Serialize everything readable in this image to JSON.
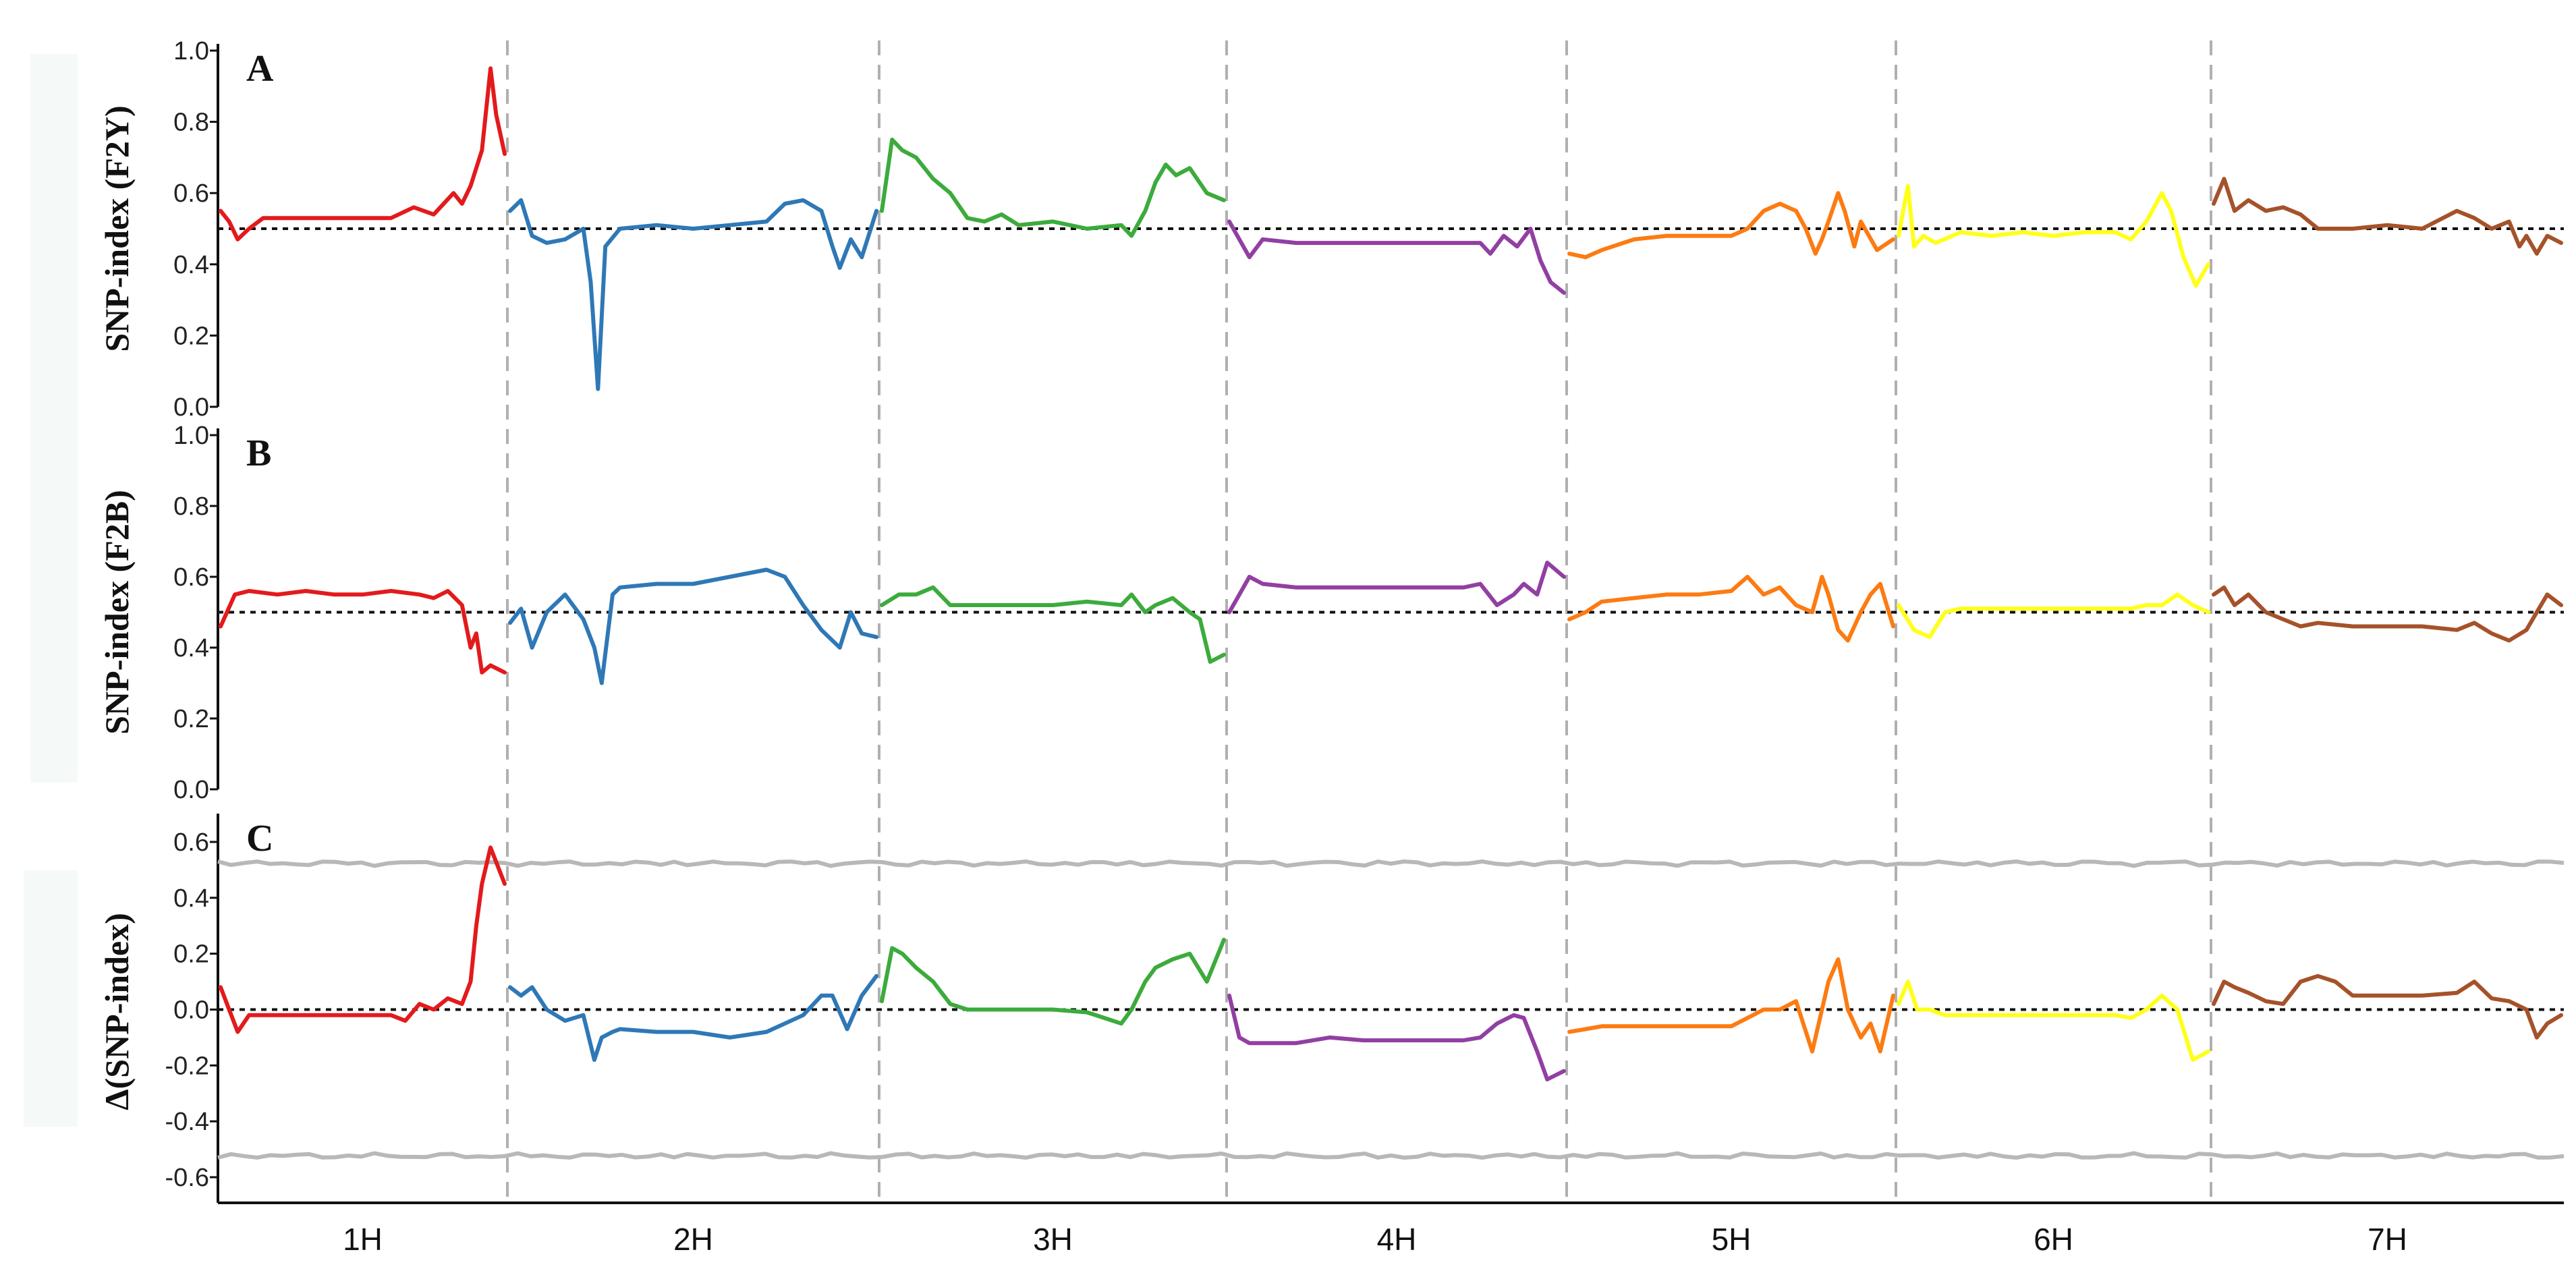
{
  "chart_data": {
    "type": "line",
    "x_categories": [
      "1H",
      "2H",
      "3H",
      "4H",
      "5H",
      "6H",
      "7H"
    ],
    "colors": {
      "1H": "#e31a1c",
      "2H": "#2f78b6",
      "3H": "#3cab3c",
      "4H": "#923fa3",
      "5H": "#fc7b12",
      "6H": "#ffff1a",
      "7H": "#a5522a",
      "threshold": "#b8b8b8"
    },
    "panels": [
      {
        "id": "A",
        "letter": "A",
        "ylabel": "SNP-index (F2Y)",
        "ylim": [
          0,
          1
        ],
        "yticks": [
          "0.0",
          "0.2",
          "0.4",
          "0.6",
          "0.8",
          "1.0"
        ],
        "reference_line": 0.5,
        "series": [
          {
            "chrom": "1H",
            "x": [
              0,
              0.03,
              0.06,
              0.1,
              0.15,
              0.3,
              0.5,
              0.6,
              0.68,
              0.75,
              0.82,
              0.85,
              0.88,
              0.92,
              0.95,
              0.97,
              1.0
            ],
            "y": [
              0.55,
              0.52,
              0.47,
              0.5,
              0.53,
              0.53,
              0.53,
              0.53,
              0.56,
              0.54,
              0.6,
              0.57,
              0.62,
              0.72,
              0.95,
              0.82,
              0.71
            ]
          },
          {
            "chrom": "2H",
            "x": [
              0,
              0.03,
              0.06,
              0.1,
              0.15,
              0.2,
              0.22,
              0.24,
              0.26,
              0.3,
              0.4,
              0.5,
              0.6,
              0.7,
              0.75,
              0.8,
              0.85,
              0.88,
              0.9,
              0.93,
              0.96,
              1.0
            ],
            "y": [
              0.55,
              0.58,
              0.48,
              0.46,
              0.47,
              0.5,
              0.35,
              0.05,
              0.45,
              0.5,
              0.51,
              0.5,
              0.51,
              0.52,
              0.57,
              0.58,
              0.55,
              0.45,
              0.39,
              0.47,
              0.42,
              0.55
            ]
          },
          {
            "chrom": "3H",
            "x": [
              0,
              0.03,
              0.06,
              0.1,
              0.15,
              0.2,
              0.25,
              0.3,
              0.35,
              0.4,
              0.5,
              0.6,
              0.7,
              0.73,
              0.77,
              0.8,
              0.83,
              0.86,
              0.9,
              0.95,
              1.0
            ],
            "y": [
              0.55,
              0.75,
              0.72,
              0.7,
              0.64,
              0.6,
              0.53,
              0.52,
              0.54,
              0.51,
              0.52,
              0.5,
              0.51,
              0.48,
              0.55,
              0.63,
              0.68,
              0.65,
              0.67,
              0.6,
              0.58
            ]
          },
          {
            "chrom": "4H",
            "x": [
              0,
              0.03,
              0.06,
              0.1,
              0.2,
              0.3,
              0.4,
              0.5,
              0.6,
              0.7,
              0.75,
              0.78,
              0.82,
              0.86,
              0.9,
              0.93,
              0.96,
              1.0
            ],
            "y": [
              0.52,
              0.47,
              0.42,
              0.47,
              0.46,
              0.46,
              0.46,
              0.46,
              0.46,
              0.46,
              0.46,
              0.43,
              0.48,
              0.45,
              0.5,
              0.41,
              0.35,
              0.32
            ]
          },
          {
            "chrom": "5H",
            "x": [
              0,
              0.05,
              0.1,
              0.2,
              0.3,
              0.4,
              0.5,
              0.55,
              0.6,
              0.65,
              0.7,
              0.73,
              0.76,
              0.78,
              0.8,
              0.83,
              0.85,
              0.88,
              0.9,
              0.95,
              1.0
            ],
            "y": [
              0.43,
              0.42,
              0.44,
              0.47,
              0.48,
              0.48,
              0.48,
              0.5,
              0.55,
              0.57,
              0.55,
              0.5,
              0.43,
              0.47,
              0.52,
              0.6,
              0.55,
              0.45,
              0.52,
              0.44,
              0.47
            ]
          },
          {
            "chrom": "6H",
            "x": [
              0,
              0.03,
              0.05,
              0.08,
              0.12,
              0.2,
              0.3,
              0.4,
              0.5,
              0.6,
              0.7,
              0.75,
              0.8,
              0.85,
              0.88,
              0.92,
              0.96,
              1.0
            ],
            "y": [
              0.48,
              0.62,
              0.45,
              0.48,
              0.46,
              0.49,
              0.48,
              0.49,
              0.48,
              0.49,
              0.49,
              0.47,
              0.52,
              0.6,
              0.55,
              0.42,
              0.34,
              0.4
            ]
          },
          {
            "chrom": "7H",
            "x": [
              0,
              0.03,
              0.06,
              0.1,
              0.15,
              0.2,
              0.25,
              0.3,
              0.4,
              0.5,
              0.6,
              0.7,
              0.75,
              0.8,
              0.85,
              0.88,
              0.9,
              0.93,
              0.96,
              1.0
            ],
            "y": [
              0.57,
              0.64,
              0.55,
              0.58,
              0.55,
              0.56,
              0.54,
              0.5,
              0.5,
              0.51,
              0.5,
              0.55,
              0.53,
              0.5,
              0.52,
              0.45,
              0.48,
              0.43,
              0.48,
              0.46
            ]
          }
        ]
      },
      {
        "id": "B",
        "letter": "B",
        "ylabel": "SNP-index (F2B)",
        "ylim": [
          0,
          1
        ],
        "yticks": [
          "0.0",
          "0.2",
          "0.4",
          "0.6",
          "0.8",
          "1.0"
        ],
        "reference_line": 0.5,
        "series": [
          {
            "chrom": "1H",
            "x": [
              0,
              0.05,
              0.1,
              0.2,
              0.3,
              0.4,
              0.5,
              0.6,
              0.7,
              0.75,
              0.8,
              0.85,
              0.88,
              0.9,
              0.92,
              0.95,
              1.0
            ],
            "y": [
              0.46,
              0.55,
              0.56,
              0.55,
              0.56,
              0.55,
              0.55,
              0.56,
              0.55,
              0.54,
              0.56,
              0.52,
              0.4,
              0.44,
              0.33,
              0.35,
              0.33
            ]
          },
          {
            "chrom": "2H",
            "x": [
              0,
              0.03,
              0.06,
              0.1,
              0.15,
              0.2,
              0.23,
              0.25,
              0.28,
              0.3,
              0.4,
              0.5,
              0.6,
              0.7,
              0.75,
              0.8,
              0.85,
              0.9,
              0.93,
              0.96,
              1.0
            ],
            "y": [
              0.47,
              0.51,
              0.4,
              0.5,
              0.55,
              0.48,
              0.4,
              0.3,
              0.55,
              0.57,
              0.58,
              0.58,
              0.6,
              0.62,
              0.6,
              0.52,
              0.45,
              0.4,
              0.5,
              0.44,
              0.43
            ]
          },
          {
            "chrom": "3H",
            "x": [
              0,
              0.05,
              0.1,
              0.15,
              0.2,
              0.3,
              0.4,
              0.5,
              0.6,
              0.7,
              0.73,
              0.77,
              0.8,
              0.85,
              0.9,
              0.93,
              0.96,
              1.0
            ],
            "y": [
              0.52,
              0.55,
              0.55,
              0.57,
              0.52,
              0.52,
              0.52,
              0.52,
              0.53,
              0.52,
              0.55,
              0.5,
              0.52,
              0.54,
              0.5,
              0.48,
              0.36,
              0.38
            ]
          },
          {
            "chrom": "4H",
            "x": [
              0,
              0.03,
              0.06,
              0.1,
              0.2,
              0.3,
              0.4,
              0.5,
              0.6,
              0.7,
              0.75,
              0.8,
              0.85,
              0.88,
              0.92,
              0.95,
              1.0
            ],
            "y": [
              0.5,
              0.55,
              0.6,
              0.58,
              0.57,
              0.57,
              0.57,
              0.57,
              0.57,
              0.57,
              0.58,
              0.52,
              0.55,
              0.58,
              0.55,
              0.64,
              0.6
            ]
          },
          {
            "chrom": "5H",
            "x": [
              0,
              0.05,
              0.1,
              0.2,
              0.3,
              0.4,
              0.5,
              0.55,
              0.6,
              0.65,
              0.7,
              0.75,
              0.78,
              0.8,
              0.83,
              0.86,
              0.9,
              0.93,
              0.96,
              1.0
            ],
            "y": [
              0.48,
              0.5,
              0.53,
              0.54,
              0.55,
              0.55,
              0.56,
              0.6,
              0.55,
              0.57,
              0.52,
              0.5,
              0.6,
              0.55,
              0.45,
              0.42,
              0.5,
              0.55,
              0.58,
              0.46
            ]
          },
          {
            "chrom": "6H",
            "x": [
              0,
              0.05,
              0.1,
              0.15,
              0.2,
              0.3,
              0.4,
              0.5,
              0.6,
              0.7,
              0.75,
              0.8,
              0.85,
              0.9,
              0.95,
              1.0
            ],
            "y": [
              0.52,
              0.45,
              0.43,
              0.5,
              0.51,
              0.51,
              0.51,
              0.51,
              0.51,
              0.51,
              0.51,
              0.52,
              0.52,
              0.55,
              0.52,
              0.5
            ]
          },
          {
            "chrom": "7H",
            "x": [
              0,
              0.03,
              0.06,
              0.1,
              0.15,
              0.2,
              0.25,
              0.3,
              0.4,
              0.5,
              0.6,
              0.7,
              0.75,
              0.8,
              0.85,
              0.9,
              0.93,
              0.96,
              1.0
            ],
            "y": [
              0.55,
              0.57,
              0.52,
              0.55,
              0.5,
              0.48,
              0.46,
              0.47,
              0.46,
              0.46,
              0.46,
              0.45,
              0.47,
              0.44,
              0.42,
              0.45,
              0.5,
              0.55,
              0.52
            ]
          }
        ]
      },
      {
        "id": "C",
        "letter": "C",
        "ylabel": "Δ(SNP-index)",
        "ylim": [
          -0.7,
          0.7
        ],
        "yticks": [
          "-0.6",
          "-0.4",
          "-0.2",
          "0.0",
          "0.2",
          "0.4",
          "0.6"
        ],
        "reference_line": 0,
        "threshold": {
          "upper": 0.53,
          "lower": -0.53
        },
        "series": [
          {
            "chrom": "1H",
            "x": [
              0,
              0.03,
              0.06,
              0.1,
              0.2,
              0.3,
              0.4,
              0.5,
              0.6,
              0.65,
              0.7,
              0.75,
              0.8,
              0.85,
              0.88,
              0.9,
              0.92,
              0.95,
              1.0
            ],
            "y": [
              0.08,
              0.0,
              -0.08,
              -0.02,
              -0.02,
              -0.02,
              -0.02,
              -0.02,
              -0.02,
              -0.04,
              0.02,
              0.0,
              0.04,
              0.02,
              0.1,
              0.3,
              0.45,
              0.58,
              0.45
            ]
          },
          {
            "chrom": "2H",
            "x": [
              0,
              0.03,
              0.06,
              0.1,
              0.15,
              0.2,
              0.23,
              0.25,
              0.28,
              0.3,
              0.4,
              0.5,
              0.6,
              0.7,
              0.75,
              0.8,
              0.85,
              0.88,
              0.92,
              0.96,
              1.0
            ],
            "y": [
              0.08,
              0.05,
              0.08,
              0.0,
              -0.04,
              -0.02,
              -0.18,
              -0.1,
              -0.08,
              -0.07,
              -0.08,
              -0.08,
              -0.1,
              -0.08,
              -0.05,
              -0.02,
              0.05,
              0.05,
              -0.07,
              0.05,
              0.12
            ]
          },
          {
            "chrom": "3H",
            "x": [
              0,
              0.03,
              0.06,
              0.1,
              0.15,
              0.2,
              0.25,
              0.3,
              0.4,
              0.5,
              0.6,
              0.7,
              0.73,
              0.77,
              0.8,
              0.85,
              0.9,
              0.95,
              1.0
            ],
            "y": [
              0.03,
              0.22,
              0.2,
              0.15,
              0.1,
              0.02,
              0.0,
              0.0,
              0.0,
              0.0,
              -0.01,
              -0.05,
              0.0,
              0.1,
              0.15,
              0.18,
              0.2,
              0.1,
              0.25
            ]
          },
          {
            "chrom": "4H",
            "x": [
              0,
              0.03,
              0.06,
              0.1,
              0.2,
              0.3,
              0.4,
              0.5,
              0.6,
              0.7,
              0.75,
              0.8,
              0.85,
              0.88,
              0.92,
              0.95,
              1.0
            ],
            "y": [
              0.05,
              -0.1,
              -0.12,
              -0.12,
              -0.12,
              -0.1,
              -0.11,
              -0.11,
              -0.11,
              -0.11,
              -0.1,
              -0.05,
              -0.02,
              -0.03,
              -0.15,
              -0.25,
              -0.22
            ]
          },
          {
            "chrom": "5H",
            "x": [
              0,
              0.05,
              0.1,
              0.2,
              0.3,
              0.4,
              0.5,
              0.55,
              0.6,
              0.65,
              0.7,
              0.75,
              0.78,
              0.8,
              0.83,
              0.86,
              0.9,
              0.93,
              0.96,
              1.0
            ],
            "y": [
              -0.08,
              -0.07,
              -0.06,
              -0.06,
              -0.06,
              -0.06,
              -0.06,
              -0.03,
              0.0,
              0.0,
              0.03,
              -0.15,
              0.0,
              0.1,
              0.18,
              0.0,
              -0.1,
              -0.05,
              -0.15,
              0.05
            ]
          },
          {
            "chrom": "6H",
            "x": [
              0,
              0.03,
              0.06,
              0.1,
              0.15,
              0.2,
              0.3,
              0.4,
              0.5,
              0.6,
              0.7,
              0.75,
              0.8,
              0.85,
              0.9,
              0.95,
              1.0
            ],
            "y": [
              0.02,
              0.1,
              0.0,
              0.0,
              -0.02,
              -0.02,
              -0.02,
              -0.02,
              -0.02,
              -0.02,
              -0.02,
              -0.03,
              0.0,
              0.05,
              0.0,
              -0.18,
              -0.15
            ]
          },
          {
            "chrom": "7H",
            "x": [
              0,
              0.03,
              0.06,
              0.1,
              0.15,
              0.2,
              0.25,
              0.3,
              0.35,
              0.4,
              0.5,
              0.6,
              0.7,
              0.75,
              0.8,
              0.85,
              0.9,
              0.93,
              0.96,
              1.0
            ],
            "y": [
              0.02,
              0.1,
              0.08,
              0.06,
              0.03,
              0.02,
              0.1,
              0.12,
              0.1,
              0.05,
              0.05,
              0.05,
              0.06,
              0.1,
              0.04,
              0.03,
              0.0,
              -0.1,
              -0.05,
              -0.02
            ]
          }
        ]
      }
    ]
  }
}
